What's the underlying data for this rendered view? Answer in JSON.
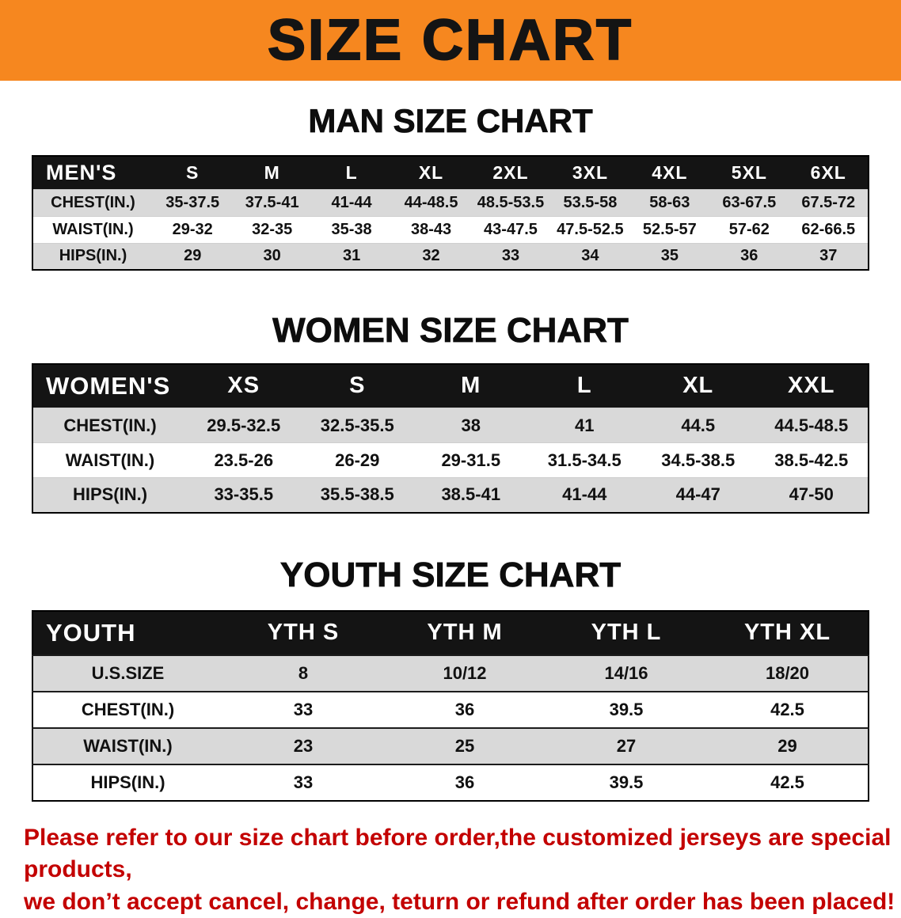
{
  "banner": {
    "title": "SIZE CHART"
  },
  "colors": {
    "banner_bg": "#F6871F",
    "header_bg": "#141414",
    "header_text": "#FFFFFF",
    "row_shaded": "#D9D9D9",
    "notice_color": "#C30000"
  },
  "chart_data": [
    {
      "type": "table",
      "title": "MAN SIZE CHART",
      "columns": [
        "MEN'S",
        "S",
        "M",
        "L",
        "XL",
        "2XL",
        "3XL",
        "4XL",
        "5XL",
        "6XL"
      ],
      "rows": [
        [
          "CHEST(IN.)",
          "35-37.5",
          "37.5-41",
          "41-44",
          "44-48.5",
          "48.5-53.5",
          "53.5-58",
          "58-63",
          "63-67.5",
          "67.5-72"
        ],
        [
          "WAIST(IN.)",
          "29-32",
          "32-35",
          "35-38",
          "38-43",
          "43-47.5",
          "47.5-52.5",
          "52.5-57",
          "57-62",
          "62-66.5"
        ],
        [
          "HIPS(IN.)",
          "29",
          "30",
          "31",
          "32",
          "33",
          "34",
          "35",
          "36",
          "37"
        ]
      ]
    },
    {
      "type": "table",
      "title": "WOMEN SIZE CHART",
      "columns": [
        "WOMEN'S",
        "XS",
        "S",
        "M",
        "L",
        "XL",
        "XXL"
      ],
      "rows": [
        [
          "CHEST(IN.)",
          "29.5-32.5",
          "32.5-35.5",
          "38",
          "41",
          "44.5",
          "44.5-48.5"
        ],
        [
          "WAIST(IN.)",
          "23.5-26",
          "26-29",
          "29-31.5",
          "31.5-34.5",
          "34.5-38.5",
          "38.5-42.5"
        ],
        [
          "HIPS(IN.)",
          "33-35.5",
          "35.5-38.5",
          "38.5-41",
          "41-44",
          "44-47",
          "47-50"
        ]
      ]
    },
    {
      "type": "table",
      "title": "YOUTH SIZE CHART",
      "columns": [
        "YOUTH",
        "YTH S",
        "YTH M",
        "YTH L",
        "YTH XL"
      ],
      "rows": [
        [
          "U.S.SIZE",
          "8",
          "10/12",
          "14/16",
          "18/20"
        ],
        [
          "CHEST(IN.)",
          "33",
          "36",
          "39.5",
          "42.5"
        ],
        [
          "WAIST(IN.)",
          "23",
          "25",
          "27",
          "29"
        ],
        [
          "HIPS(IN.)",
          "33",
          "36",
          "39.5",
          "42.5"
        ]
      ]
    }
  ],
  "notice": {
    "line1": "Please refer to our size chart before order,the customized jerseys are special products,",
    "line2": "we don’t accept cancel, change, teturn or refund after order has been placed!"
  }
}
